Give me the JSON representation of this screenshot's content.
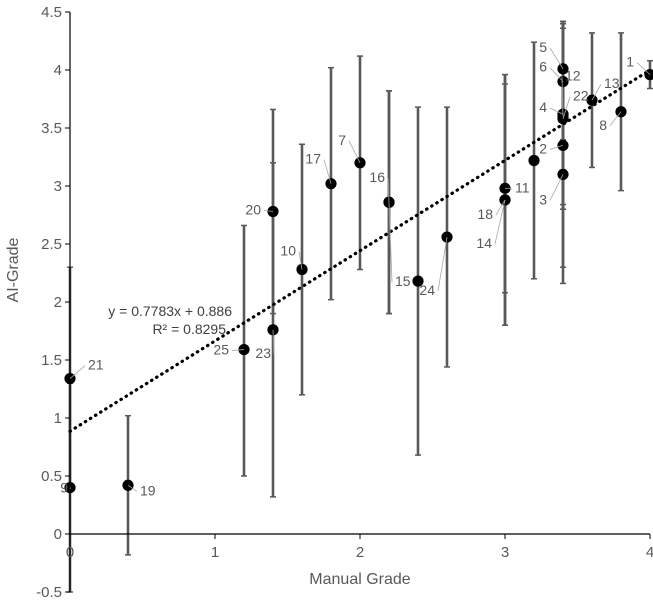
{
  "chart_data": {
    "type": "scatter",
    "xlabel": "Manual Grade",
    "ylabel": "AI-Grade",
    "xlim": [
      0,
      4
    ],
    "ylim": [
      -0.5,
      4.5
    ],
    "x_ticks": [
      "0",
      "1",
      "2",
      "3",
      "4"
    ],
    "y_ticks": [
      "-0.5",
      "0",
      "0.5",
      "1",
      "1.5",
      "2",
      "2.5",
      "3",
      "3.5",
      "4",
      "4.5"
    ],
    "grid": false,
    "legend": "none",
    "marker_color": "#000000",
    "error_bar_color": "#595959",
    "trendline": {
      "slope": 0.7783,
      "intercept": 0.886,
      "style": "dotted",
      "color": "#000000",
      "equation_label": "y = 0.7783x + 0.886",
      "r2_label": "R² = 0.8295"
    },
    "points": [
      {
        "label": "1",
        "x": 4.0,
        "y": 3.96,
        "err_low": 3.84,
        "err_high": 4.08
      },
      {
        "label": "2",
        "x": 3.4,
        "y": 3.35,
        "err_low": 2.3,
        "err_high": 4.4
      },
      {
        "label": "3",
        "x": 3.4,
        "y": 3.1,
        "err_low": 2.16,
        "err_high": 4.04
      },
      {
        "label": "4",
        "x": 3.4,
        "y": 3.62,
        "err_low": 2.84,
        "err_high": 4.4
      },
      {
        "label": "5",
        "x": 3.4,
        "y": 4.01,
        "err_low": 3.6,
        "err_high": 4.42
      },
      {
        "label": "6",
        "x": 3.4,
        "y": 3.9,
        "err_low": 3.4,
        "err_high": 4.4
      },
      {
        "label": "7",
        "x": 2.0,
        "y": 3.2,
        "err_low": 2.28,
        "err_high": 4.12
      },
      {
        "label": "8",
        "x": 3.8,
        "y": 3.64,
        "err_low": 2.96,
        "err_high": 4.32
      },
      {
        "label": "9",
        "x": 0.0,
        "y": 0.4,
        "err_low": -0.5,
        "err_high": 1.3
      },
      {
        "label": "10",
        "x": 1.6,
        "y": 2.28,
        "err_low": 1.2,
        "err_high": 3.36
      },
      {
        "label": "11",
        "x": 3.0,
        "y": 2.98,
        "err_low": 2.08,
        "err_high": 3.88
      },
      {
        "label": "12",
        "x": 3.4,
        "y": 3.6,
        "err_low": 2.8,
        "err_high": 4.4
      },
      {
        "label": "13",
        "x": 3.6,
        "y": 3.74,
        "err_low": 3.16,
        "err_high": 4.32
      },
      {
        "label": "14",
        "x": 3.0,
        "y": 2.88,
        "err_low": 1.8,
        "err_high": 3.96
      },
      {
        "label": "15",
        "x": 2.2,
        "y": 2.86,
        "err_low": 1.9,
        "err_high": 3.82
      },
      {
        "label": "16",
        "x": 2.2,
        "y": 2.86,
        "err_low": 1.9,
        "err_high": 3.82
      },
      {
        "label": "17",
        "x": 1.8,
        "y": 3.02,
        "err_low": 2.02,
        "err_high": 4.02
      },
      {
        "label": "18",
        "x": 3.0,
        "y": 2.88,
        "err_low": 1.8,
        "err_high": 3.96
      },
      {
        "label": "19",
        "x": 0.4,
        "y": 0.42,
        "err_low": -0.18,
        "err_high": 1.02
      },
      {
        "label": "20",
        "x": 1.4,
        "y": 2.78,
        "err_low": 1.9,
        "err_high": 3.66
      },
      {
        "label": "21",
        "x": 0.0,
        "y": 1.34,
        "err_low": 0.38,
        "err_high": 2.3
      },
      {
        "label": "22",
        "x": 3.4,
        "y": 3.58,
        "err_low": 2.8,
        "err_high": 4.36
      },
      {
        "label": "23",
        "x": 1.4,
        "y": 1.76,
        "err_low": 0.32,
        "err_high": 3.2
      },
      {
        "label": "24",
        "x": 2.6,
        "y": 2.56,
        "err_low": 1.44,
        "err_high": 3.68
      },
      {
        "label": "25",
        "x": 1.2,
        "y": 1.59,
        "err_low": 0.5,
        "err_high": 2.66
      }
    ],
    "extra_points": [
      {
        "x": 2.4,
        "y": 2.18,
        "err_low": 0.68,
        "err_high": 3.68
      },
      {
        "x": 3.2,
        "y": 3.22,
        "err_low": 2.2,
        "err_high": 4.24
      }
    ]
  }
}
